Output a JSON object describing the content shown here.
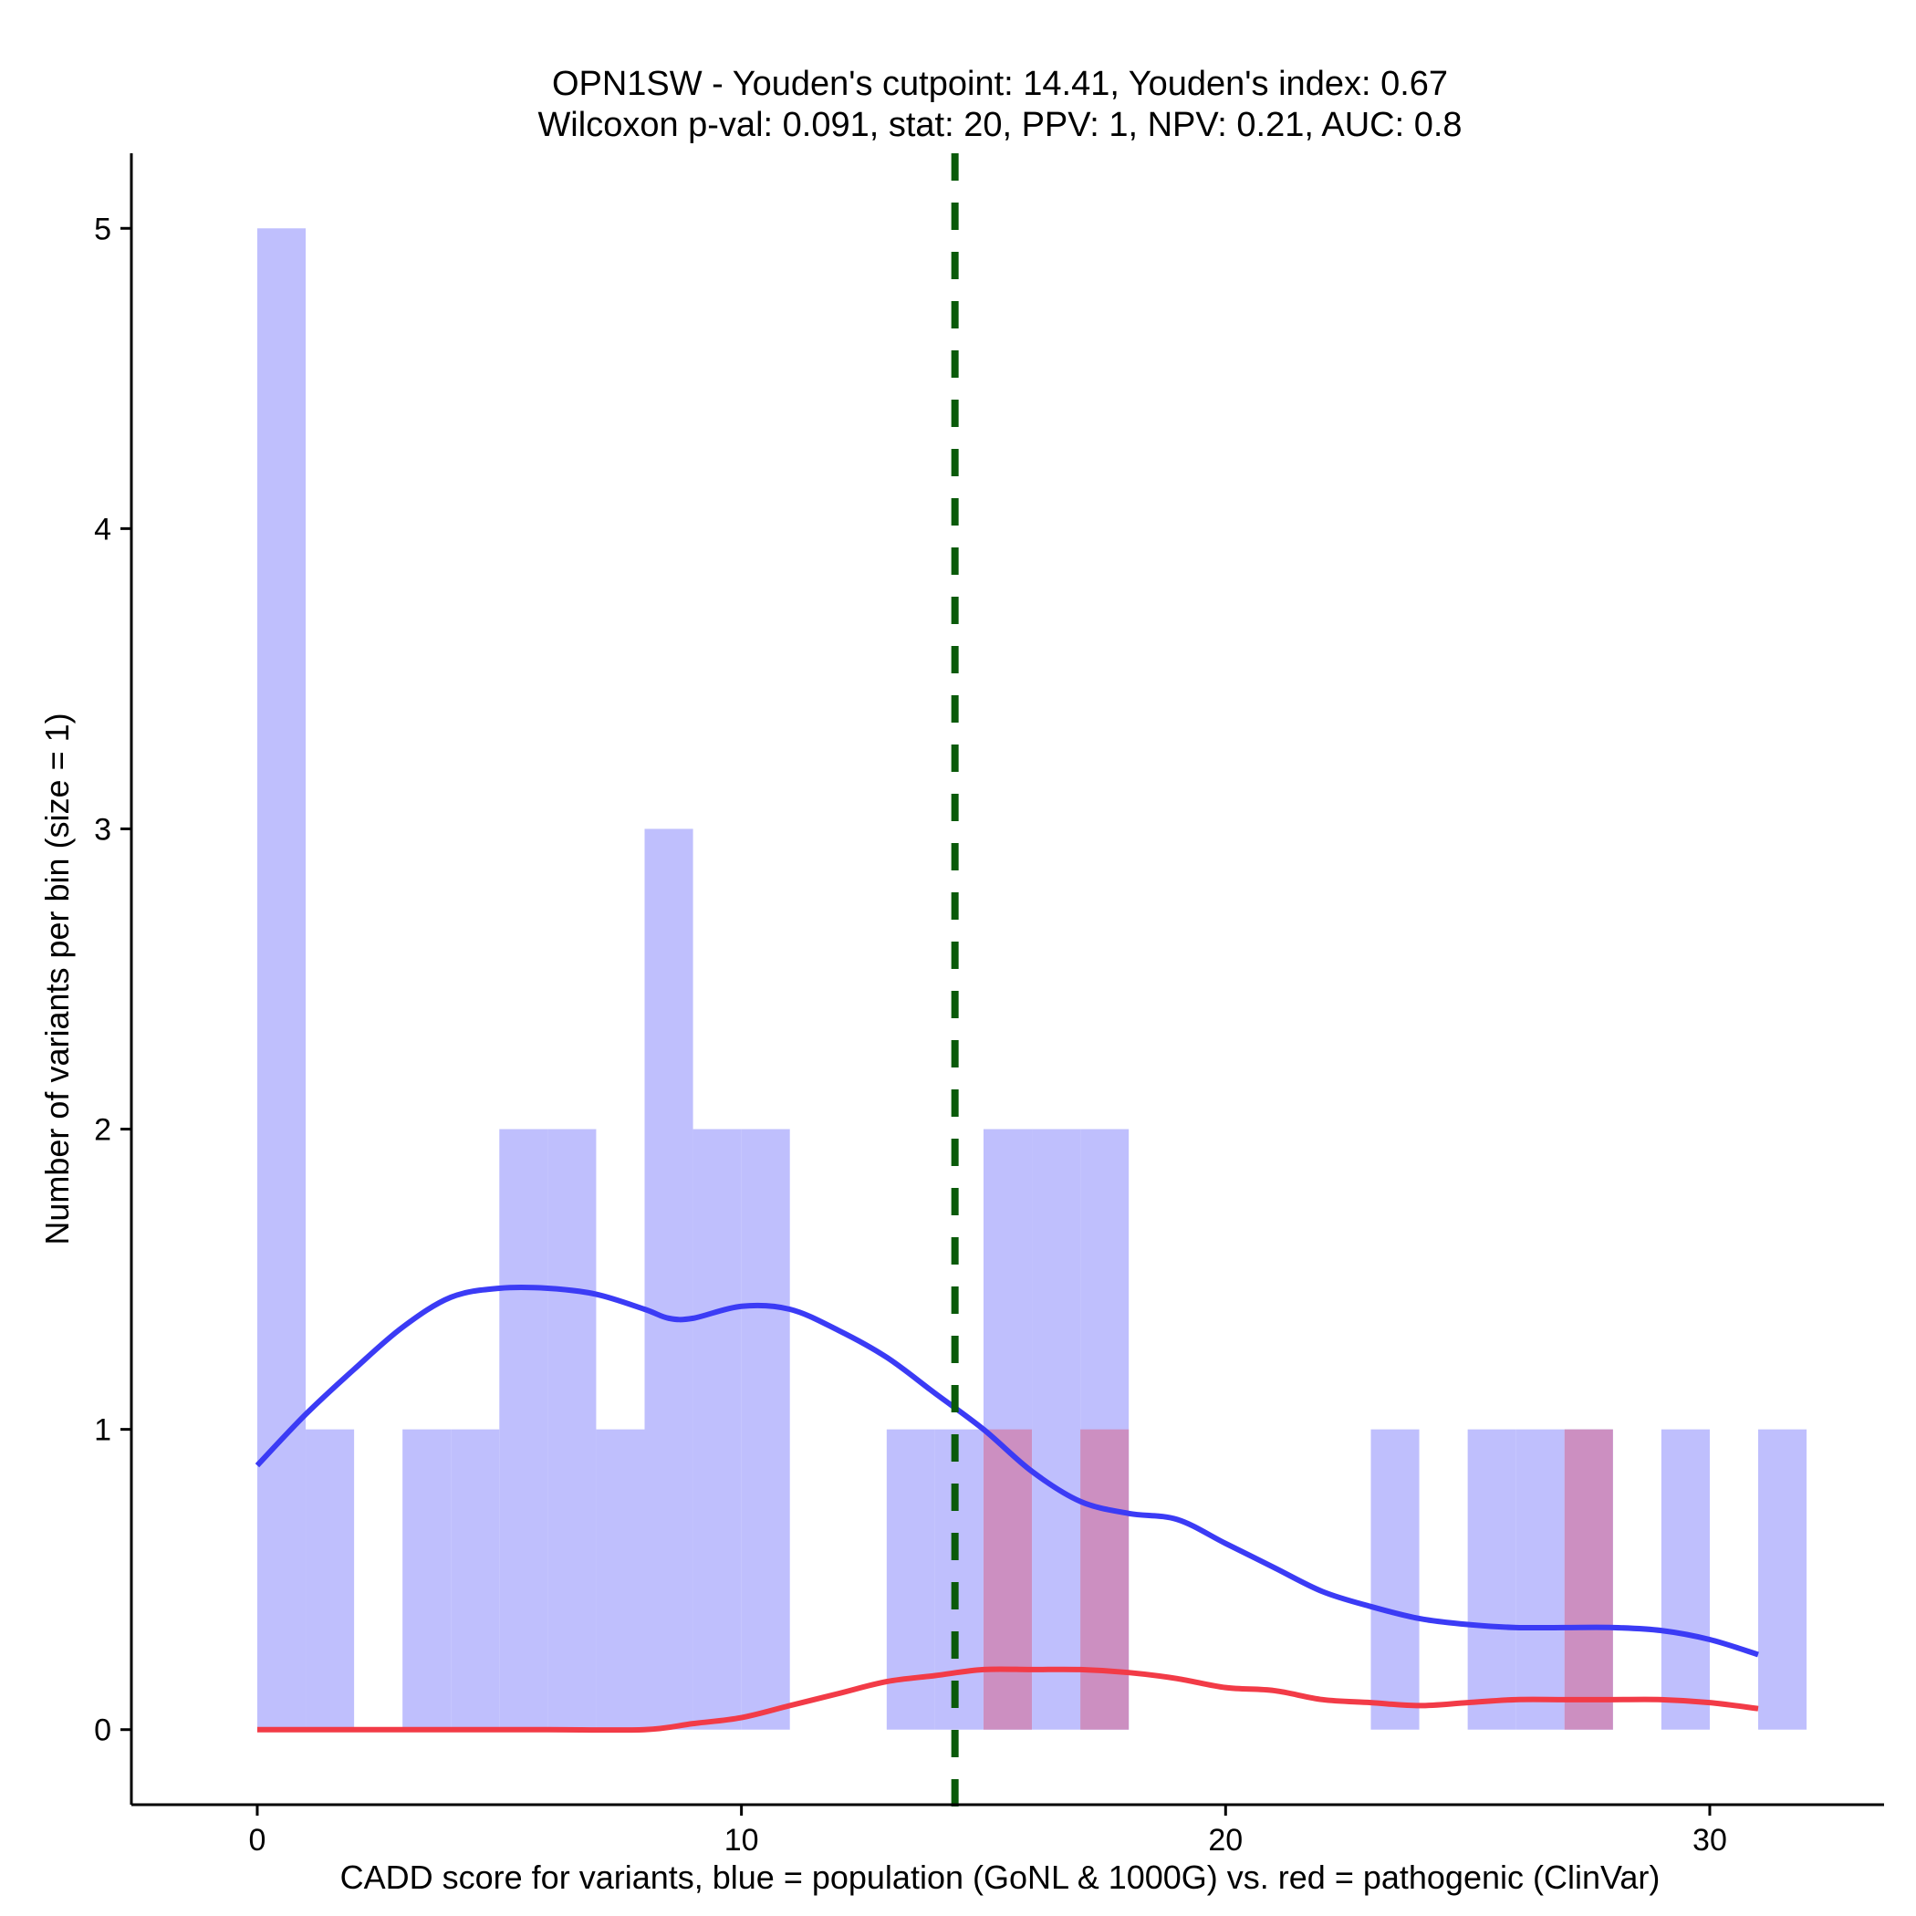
{
  "chart_data": {
    "type": "bar",
    "title_line1": "OPN1SW - Youden's cutpoint: 14.41, Youden's index: 0.67",
    "title_line2": "Wilcoxon p-val: 0.091, stat: 20, PPV: 1, NPV: 0.21, AUC: 0.8",
    "xlabel": "CADD score for variants, blue = population (GoNL & 1000G) vs. red = pathogenic (ClinVar)",
    "ylabel": "Number of variants per bin (size = 1)",
    "xlim": [
      -2.6,
      33.6
    ],
    "ylim": [
      -0.25,
      5.25
    ],
    "x_ticks": [
      0,
      10,
      20,
      30
    ],
    "y_ticks": [
      0,
      1,
      2,
      3,
      4,
      5
    ],
    "bin_width": 1,
    "cutpoint": 14.41,
    "colors": {
      "population_bar": "#bfbffd",
      "pathogenic_bar": "#fdbfc1",
      "overlap_bar": "#cc8fc1",
      "population_line": "#3b3bf5",
      "pathogenic_line": "#f23b47",
      "cutpoint_line": "#0a5a0a"
    },
    "series": [
      {
        "name": "population (GoNL & 1000G)",
        "bin_starts": [
          0,
          1,
          3,
          4,
          5,
          6,
          7,
          8,
          9,
          10,
          13,
          14,
          15,
          16,
          17,
          23,
          25,
          26,
          27,
          29,
          31
        ],
        "counts": [
          5,
          1,
          1,
          1,
          2,
          2,
          1,
          3,
          2,
          2,
          1,
          1,
          2,
          2,
          2,
          1,
          1,
          1,
          1,
          1,
          1
        ],
        "density_x": [
          0,
          1,
          2,
          3,
          4,
          5,
          6,
          7,
          8,
          8.5,
          9,
          10,
          11,
          12,
          13,
          14,
          15,
          16,
          17,
          18,
          19,
          20,
          21,
          22,
          23,
          24,
          25,
          26,
          27,
          28,
          29,
          30,
          31
        ],
        "density_y": [
          0.88,
          1.05,
          1.2,
          1.34,
          1.44,
          1.47,
          1.47,
          1.45,
          1.4,
          1.37,
          1.37,
          1.41,
          1.4,
          1.33,
          1.24,
          1.12,
          1.0,
          0.86,
          0.76,
          0.72,
          0.7,
          0.62,
          0.54,
          0.46,
          0.41,
          0.37,
          0.35,
          0.34,
          0.34,
          0.34,
          0.33,
          0.3,
          0.25
        ]
      },
      {
        "name": "pathogenic (ClinVar)",
        "bin_starts": [
          15,
          17,
          27
        ],
        "counts": [
          1,
          1,
          1
        ],
        "density_x": [
          0,
          2,
          4,
          6,
          8,
          9,
          10,
          11,
          12,
          13,
          14,
          15,
          16,
          17,
          18,
          19,
          20,
          21,
          22,
          23,
          24,
          25,
          26,
          27,
          28,
          29,
          30,
          31
        ],
        "density_y": [
          0,
          0,
          0,
          0,
          0,
          0.02,
          0.04,
          0.08,
          0.12,
          0.16,
          0.18,
          0.2,
          0.2,
          0.2,
          0.19,
          0.17,
          0.14,
          0.13,
          0.1,
          0.09,
          0.08,
          0.09,
          0.1,
          0.1,
          0.1,
          0.1,
          0.09,
          0.07
        ]
      }
    ]
  }
}
